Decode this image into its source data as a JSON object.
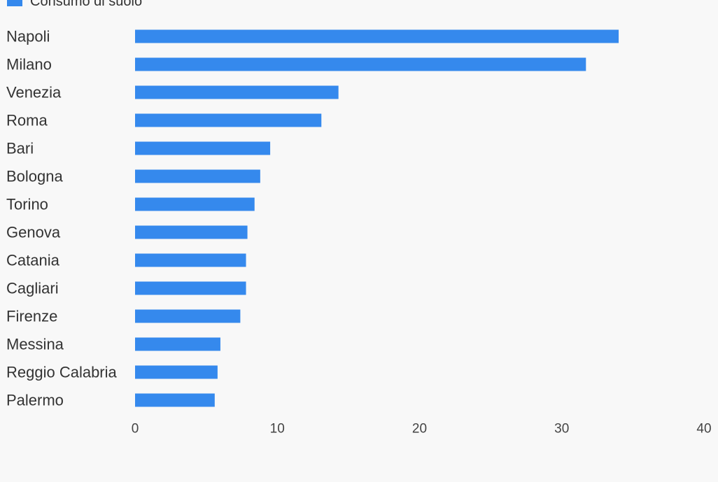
{
  "colors": {
    "bar": "#3589ed",
    "category_text": "#333333",
    "tick_text": "#444444",
    "background": "#f8f8f8"
  },
  "legend": {
    "label": "Consumo di suolo"
  },
  "chart_data": {
    "type": "bar",
    "orientation": "horizontal",
    "categories": [
      "Napoli",
      "Milano",
      "Venezia",
      "Roma",
      "Bari",
      "Bologna",
      "Torino",
      "Genova",
      "Catania",
      "Cagliari",
      "Firenze",
      "Messina",
      "Reggio Calabria",
      "Palermo"
    ],
    "series": [
      {
        "name": "Consumo di suolo",
        "values": [
          34.0,
          31.7,
          14.3,
          13.1,
          9.5,
          8.8,
          8.4,
          7.9,
          7.8,
          7.8,
          7.4,
          6.0,
          5.8,
          5.6
        ]
      }
    ],
    "xlim": [
      0,
      40
    ],
    "xticks": [
      0,
      10,
      20,
      30,
      40
    ],
    "grid": false,
    "legend_position": "top-left"
  }
}
